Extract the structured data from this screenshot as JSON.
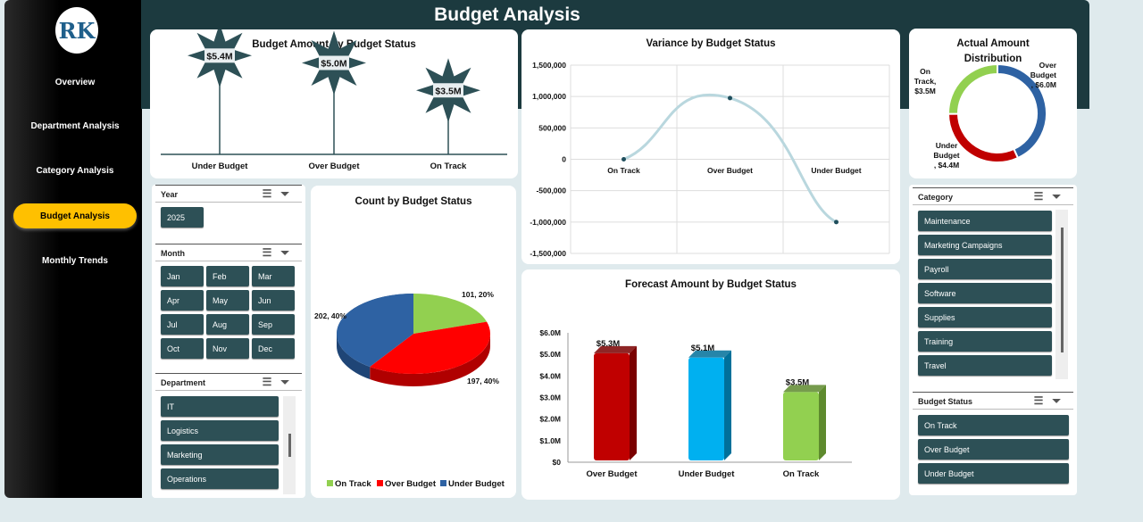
{
  "title": "Budget Analysis",
  "logo_text": "RK",
  "nav": [
    {
      "label": "Overview"
    },
    {
      "label": "Department Analysis"
    },
    {
      "label": "Category Analysis"
    },
    {
      "label": "Budget Analysis",
      "active": true
    },
    {
      "label": "Monthly Trends"
    }
  ],
  "slicers": {
    "year": {
      "title": "Year",
      "items": [
        "2025"
      ]
    },
    "month": {
      "title": "Month",
      "items": [
        "Jan",
        "Feb",
        "Mar",
        "Apr",
        "May",
        "Jun",
        "Jul",
        "Aug",
        "Sep",
        "Oct",
        "Nov",
        "Dec"
      ]
    },
    "department": {
      "title": "Department",
      "items": [
        "IT",
        "Logistics",
        "Marketing",
        "Operations"
      ]
    },
    "category": {
      "title": "Category",
      "items": [
        "Maintenance",
        "Marketing Campaigns",
        "Payroll",
        "Software",
        "Supplies",
        "Training",
        "Travel"
      ]
    },
    "budget_status": {
      "title": "Budget Status",
      "items": [
        "On Track",
        "Over Budget",
        "Under Budget"
      ]
    }
  },
  "chart_data": [
    {
      "type": "bar",
      "id": "budget",
      "title": "Budget Amount by Budget Status",
      "categories": [
        "Under Budget",
        "Over Budget",
        "On Track"
      ],
      "values": [
        5.4,
        5.0,
        3.5
      ],
      "labels": [
        "$5.4M",
        "$5.0M",
        "$3.5M"
      ],
      "unit": "$M",
      "color": "#2d5056"
    },
    {
      "type": "line",
      "id": "variance",
      "title": "Variance by Budget Status",
      "categories": [
        "On Track",
        "Over Budget",
        "Under Budget"
      ],
      "values": [
        0,
        975000,
        -1000000
      ],
      "ylim": [
        -1500000,
        1500000
      ],
      "yticks": [
        "1,500,000",
        "1,000,000",
        "500,000",
        "0",
        "-500,000",
        "-1,000,000",
        "-1,500,000"
      ],
      "color": "#b9d7de"
    },
    {
      "type": "pie",
      "id": "donut",
      "title": "Actual Amount Distribution",
      "categories": [
        "Over Budget",
        "Under Budget",
        "On Track"
      ],
      "values": [
        6.0,
        4.4,
        3.5
      ],
      "labels": [
        "Over Budget , $6.0M",
        "Under Budget , $4.4M",
        "On Track, $3.5M"
      ],
      "colors": [
        "#2e62a3",
        "#c00000",
        "#92d050"
      ]
    },
    {
      "type": "pie",
      "id": "count",
      "title": "Count by Budget Status",
      "categories": [
        "On Track",
        "Over Budget",
        "Under Budget"
      ],
      "values": [
        101,
        197,
        202
      ],
      "labels": [
        "101, 20%",
        "197, 40%",
        "202, 40%"
      ],
      "colors": [
        "#92d050",
        "#ff0000",
        "#2e62a3"
      ],
      "legend": "bottom"
    },
    {
      "type": "bar",
      "id": "forecast",
      "title": "Forecast Amount by Budget Status",
      "categories": [
        "Over Budget",
        "Under Budget",
        "On Track"
      ],
      "values": [
        5.3,
        5.1,
        3.5
      ],
      "labels": [
        "$5.3M",
        "$5.1M",
        "$3.5M"
      ],
      "ylim": [
        0,
        6
      ],
      "yticks": [
        "$0",
        "$1.0M",
        "$2.0M",
        "$3.0M",
        "$4.0M",
        "$5.0M",
        "$6.0M"
      ],
      "colors": [
        "#c00000",
        "#00b0f0",
        "#92d050"
      ]
    }
  ]
}
